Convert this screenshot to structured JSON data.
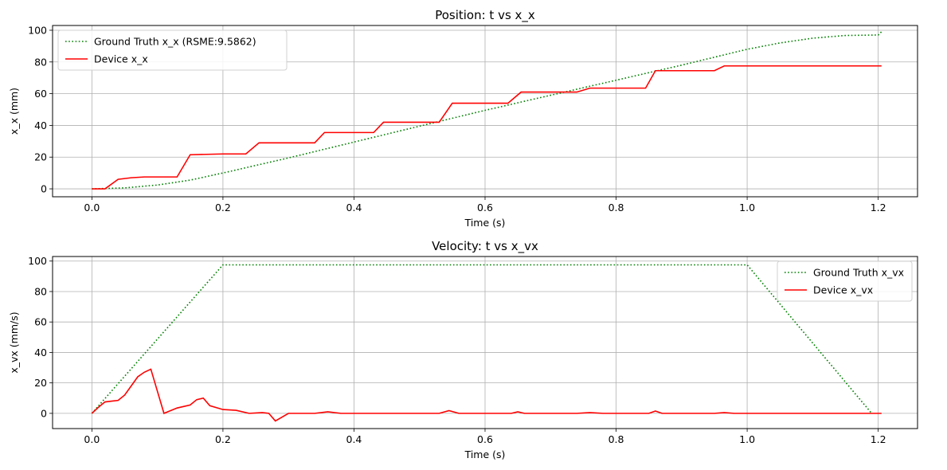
{
  "chart_data": [
    {
      "type": "line",
      "title": "Position: t vs x_x",
      "xlabel": "Time (s)",
      "ylabel": "x_x (mm)",
      "xlim": [
        -0.06,
        1.26
      ],
      "ylim": [
        -5,
        103
      ],
      "xticks": [
        "0.0",
        "0.2",
        "0.4",
        "0.6",
        "0.8",
        "1.0",
        "1.2"
      ],
      "yticks": [
        "0",
        "20",
        "40",
        "60",
        "80",
        "100"
      ],
      "grid": true,
      "legend_position": "upper-left",
      "series": [
        {
          "name": "Ground Truth x_x (RSME:9.5862)",
          "color": "#008000",
          "style": "dotted",
          "x": [
            0,
            0.05,
            0.1,
            0.15,
            0.2,
            0.3,
            0.4,
            0.5,
            0.6,
            0.7,
            0.8,
            0.9,
            1.0,
            1.05,
            1.1,
            1.15,
            1.2,
            1.205
          ],
          "y": [
            0,
            0.6,
            2.4,
            5.5,
            10,
            19.5,
            29.5,
            39.5,
            49.5,
            59,
            68.5,
            78,
            88,
            92,
            95,
            96.7,
            97,
            99
          ]
        },
        {
          "name": "Device x_x",
          "color": "#ff0000",
          "style": "solid",
          "x": [
            0,
            0.02,
            0.04,
            0.05,
            0.06,
            0.08,
            0.1,
            0.13,
            0.15,
            0.2,
            0.235,
            0.255,
            0.34,
            0.355,
            0.43,
            0.445,
            0.53,
            0.55,
            0.635,
            0.655,
            0.74,
            0.76,
            0.845,
            0.86,
            0.95,
            0.965,
            1.205
          ],
          "y": [
            0,
            0,
            6,
            6.5,
            7,
            7.5,
            7.5,
            7.5,
            21.5,
            22,
            22,
            29,
            29,
            35.5,
            35.5,
            42,
            42,
            54,
            54,
            61,
            61,
            63.5,
            63.5,
            74.5,
            74.5,
            77.5,
            77.5
          ]
        }
      ]
    },
    {
      "type": "line",
      "title": "Velocity: t vs x_vx",
      "xlabel": "Time (s)",
      "ylabel": "x_vx (mm/s)",
      "xlim": [
        -0.06,
        1.26
      ],
      "ylim": [
        -10,
        103
      ],
      "xticks": [
        "0.0",
        "0.2",
        "0.4",
        "0.6",
        "0.8",
        "1.0",
        "1.2"
      ],
      "yticks": [
        "0",
        "20",
        "40",
        "60",
        "80",
        "100"
      ],
      "grid": true,
      "legend_position": "upper-right",
      "series": [
        {
          "name": "Ground Truth x_vx",
          "color": "#008000",
          "style": "dotted",
          "x": [
            0,
            0.2,
            1.0,
            1.19
          ],
          "y": [
            0,
            97.5,
            97.5,
            0
          ]
        },
        {
          "name": "Device x_vx",
          "color": "#ff0000",
          "style": "solid",
          "x": [
            0,
            0.01,
            0.02,
            0.03,
            0.04,
            0.05,
            0.06,
            0.07,
            0.08,
            0.09,
            0.11,
            0.13,
            0.15,
            0.16,
            0.17,
            0.18,
            0.2,
            0.22,
            0.24,
            0.26,
            0.27,
            0.28,
            0.3,
            0.34,
            0.36,
            0.38,
            0.53,
            0.545,
            0.56,
            0.64,
            0.65,
            0.66,
            0.74,
            0.76,
            0.78,
            0.85,
            0.86,
            0.87,
            0.95,
            0.965,
            0.98,
            1.205
          ],
          "y": [
            0,
            4,
            7.5,
            8,
            8.5,
            12,
            18,
            24,
            27,
            29,
            0,
            3.5,
            5.5,
            9,
            10,
            5,
            2.5,
            2,
            0,
            0.5,
            0,
            -5,
            0,
            0,
            1,
            0,
            0,
            1.8,
            0,
            0,
            1,
            0,
            0,
            0.5,
            0,
            0,
            1.5,
            0,
            0,
            0.5,
            0,
            0
          ]
        }
      ]
    }
  ]
}
